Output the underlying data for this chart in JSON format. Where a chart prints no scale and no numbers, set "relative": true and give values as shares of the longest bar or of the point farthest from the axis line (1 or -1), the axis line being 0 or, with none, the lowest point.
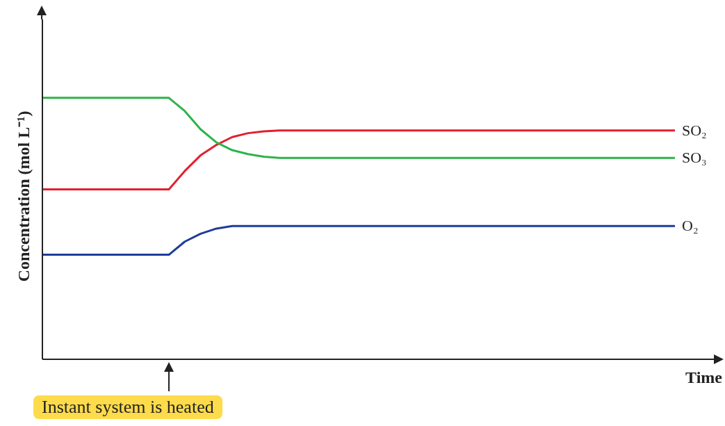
{
  "chart_data": {
    "type": "line",
    "relative": true,
    "xlabel": "Time",
    "ylabel": "Concentration (mol L⁻¹)",
    "categories": [
      null,
      null,
      null,
      null,
      null,
      null,
      null,
      null,
      null,
      null,
      null,
      null,
      null,
      null,
      null,
      null,
      null,
      null,
      null,
      null,
      null,
      null,
      null,
      null,
      null,
      null,
      null,
      null,
      null,
      null,
      null,
      null,
      null,
      null,
      null,
      null,
      null,
      null,
      null,
      null,
      null
    ],
    "series": [
      {
        "name": "SO₂",
        "color": "#e0202e",
        "values": [
          0.65,
          0.65,
          0.65,
          0.65,
          0.65,
          0.65,
          0.65,
          0.65,
          0.65,
          0.72,
          0.78,
          0.82,
          0.85,
          0.865,
          0.872,
          0.875,
          0.875,
          0.875,
          0.875,
          0.875,
          0.875,
          0.875,
          0.875,
          0.875,
          0.875,
          0.875,
          0.875,
          0.875,
          0.875,
          0.875,
          0.875,
          0.875,
          0.875,
          0.875,
          0.875,
          0.875,
          0.875,
          0.875,
          0.875,
          0.875,
          0.875
        ]
      },
      {
        "name": "SO₃",
        "color": "#2eb34a",
        "values": [
          1,
          1,
          1,
          1,
          1,
          1,
          1,
          1,
          1,
          0.95,
          0.88,
          0.83,
          0.8,
          0.785,
          0.775,
          0.77,
          0.77,
          0.77,
          0.77,
          0.77,
          0.77,
          0.77,
          0.77,
          0.77,
          0.77,
          0.77,
          0.77,
          0.77,
          0.77,
          0.77,
          0.77,
          0.77,
          0.77,
          0.77,
          0.77,
          0.77,
          0.77,
          0.77,
          0.77,
          0.77,
          0.77
        ]
      },
      {
        "name": "O₂",
        "color": "#1f3c99",
        "values": [
          0.4,
          0.4,
          0.4,
          0.4,
          0.4,
          0.4,
          0.4,
          0.4,
          0.4,
          0.45,
          0.48,
          0.5,
          0.51,
          0.51,
          0.51,
          0.51,
          0.51,
          0.51,
          0.51,
          0.51,
          0.51,
          0.51,
          0.51,
          0.51,
          0.51,
          0.51,
          0.51,
          0.51,
          0.51,
          0.51,
          0.51,
          0.51,
          0.51,
          0.51,
          0.51,
          0.51,
          0.51,
          0.51,
          0.51,
          0.51,
          0.51
        ]
      }
    ],
    "annotations": [
      "Instant system is heated"
    ],
    "grid": false,
    "legend": false,
    "marker": "none",
    "line_style": "solid"
  }
}
